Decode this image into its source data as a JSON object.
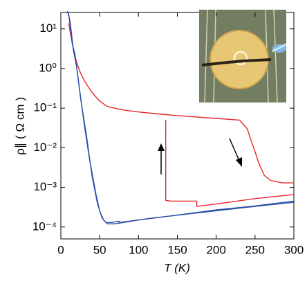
{
  "chart_data": {
    "type": "line",
    "x_label": "T (K)",
    "y_label": "ρ∥ ( Ω cm )",
    "log_y": true,
    "xlim": [
      0,
      300
    ],
    "ylim": [
      5e-05,
      26
    ],
    "xticks": [
      0,
      50,
      100,
      150,
      200,
      250,
      300
    ],
    "yticks": [
      {
        "value": 0.0001,
        "label": "10⁻⁴"
      },
      {
        "value": 0.001,
        "label": "10⁻³"
      },
      {
        "value": 0.01,
        "label": "10⁻²"
      },
      {
        "value": 0.1,
        "label": "10⁻¹"
      },
      {
        "value": 1,
        "label": "10⁰"
      },
      {
        "value": 10,
        "label": "10¹"
      }
    ],
    "series": [
      {
        "color": "#e8262a",
        "x": [
          10,
          15,
          20,
          25,
          30,
          40,
          50,
          60,
          80,
          100,
          130,
          150,
          200,
          230,
          240,
          245,
          250,
          255,
          262,
          270,
          285,
          300
        ],
        "values": [
          14,
          4,
          1.5,
          0.8,
          0.5,
          0.25,
          0.15,
          0.11,
          0.09,
          0.08,
          0.07,
          0.065,
          0.055,
          0.05,
          0.03,
          0.015,
          0.008,
          0.004,
          0.002,
          0.0015,
          0.0013,
          0.0013
        ]
      },
      {
        "color": "#e8262a",
        "x": [
          135,
          135,
          142,
          175,
          175,
          200,
          250,
          300
        ],
        "values": [
          0.05,
          0.00047,
          0.00045,
          0.00045,
          0.00033,
          0.00038,
          0.00052,
          0.00066
        ]
      },
      {
        "color": "#2b4fa8",
        "x": [
          8,
          10,
          15,
          18,
          24,
          30,
          37,
          45,
          50,
          55,
          60,
          70,
          100,
          150,
          200,
          250,
          300
        ],
        "values": [
          28,
          25,
          4,
          2.4,
          0.3,
          0.04,
          0.005,
          0.0007,
          0.00025,
          0.00015,
          0.00012,
          0.00012,
          0.00015,
          0.0002,
          0.00027,
          0.00034,
          0.00045
        ]
      },
      {
        "color": "#2b4fa8",
        "x": [
          9,
          12,
          16,
          20,
          26,
          33,
          40,
          47,
          53,
          58,
          65,
          75,
          75,
          120,
          170,
          230,
          300
        ],
        "values": [
          27,
          15,
          3,
          1.2,
          0.15,
          0.02,
          0.002,
          0.0004,
          0.00017,
          0.00013,
          0.00013,
          0.00014,
          0.00013,
          0.00017,
          0.00022,
          0.0003,
          0.00042
        ]
      }
    ]
  }
}
